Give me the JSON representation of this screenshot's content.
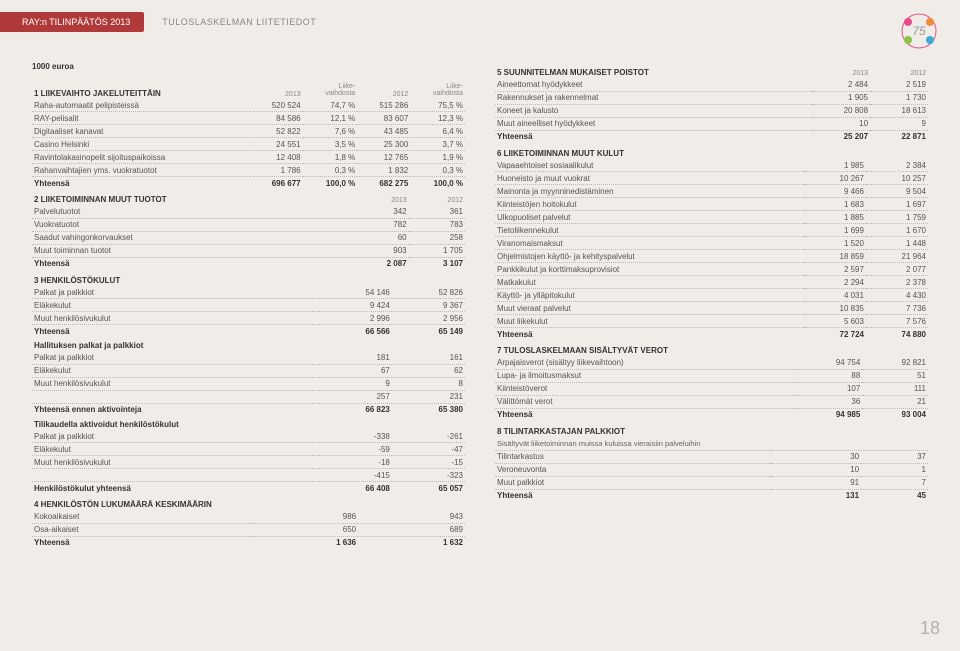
{
  "header": {
    "tab": "RAY:n TILINPÄÄTÖS 2013",
    "title": "TULOSLASKELMAN LIITETIEDOT"
  },
  "unit_label": "1000 euroa",
  "page_number": "18",
  "logo": {
    "colors": [
      "#e84c8a",
      "#f08c3c",
      "#3fa8d8",
      "#8bc34a"
    ]
  },
  "s1": {
    "title": "1 LIIKEVAIHTO JAKELUTEITTÄIN",
    "head": [
      "2013",
      "Liike-\nvaihdosta",
      "2012",
      "Liike-\nvaihdosta"
    ],
    "rows": [
      [
        "Raha-automaatit pelipisteissä",
        "520 524",
        "74,7 %",
        "515 286",
        "75,5 %"
      ],
      [
        "RAY-pelisalit",
        "84 586",
        "12,1 %",
        "83 607",
        "12,3 %"
      ],
      [
        "Digitaaliset kanavat",
        "52 822",
        "7,6 %",
        "43 485",
        "6,4 %"
      ],
      [
        "Casino Helsinki",
        "24 551",
        "3,5 %",
        "25 300",
        "3,7 %"
      ],
      [
        "Ravintolakasinopelit sijoituspaikoissa",
        "12 408",
        "1,8 %",
        "12 765",
        "1,9 %"
      ],
      [
        "Rahanvaihtajien yms. vuokratuotot",
        "1 786",
        "0,3 %",
        "1 832",
        "0,3 %"
      ]
    ],
    "total": [
      "Yhteensä",
      "696 677",
      "100,0 %",
      "682 275",
      "100,0 %"
    ]
  },
  "s2": {
    "title": "2 LIIKETOIMINNAN MUUT TUOTOT",
    "head": [
      "2013",
      "2012"
    ],
    "rows": [
      [
        "Palvelutuotot",
        "342",
        "361"
      ],
      [
        "Vuokratuotot",
        "782",
        "783"
      ],
      [
        "Saadut vahingonkorvaukset",
        "60",
        "258"
      ],
      [
        "Muut toiminnan tuotot",
        "903",
        "1 705"
      ]
    ],
    "total": [
      "Yhteensä",
      "2 087",
      "3 107"
    ]
  },
  "s3": {
    "title": "3 HENKILÖSTÖKULUT",
    "rows": [
      [
        "Palkat ja palkkiot",
        "54 146",
        "52 826"
      ],
      [
        "Eläkekulut",
        "9 424",
        "9 367"
      ],
      [
        "Muut henkilösivukulut",
        "2 996",
        "2 956"
      ]
    ],
    "total": [
      "Yhteensä",
      "66 566",
      "65 149"
    ]
  },
  "s3b": {
    "subtitle": "Hallituksen palkat ja palkkiot",
    "rows": [
      [
        "Palkat ja palkkiot",
        "181",
        "161"
      ],
      [
        "Eläkekulut",
        "67",
        "62"
      ],
      [
        "Muut henkilösivukulut",
        "9",
        "8"
      ],
      [
        "",
        "257",
        "231"
      ]
    ],
    "total": [
      "Yhteensä ennen aktivointeja",
      "66 823",
      "65 380"
    ]
  },
  "s3c": {
    "subtitle": "Tilikaudella aktivoidut henkilöstökulut",
    "rows": [
      [
        "Palkat ja palkkiot",
        "-338",
        "-261"
      ],
      [
        "Eläkekulut",
        "-59",
        "-47"
      ],
      [
        "Muut henkilösivukulut",
        "-18",
        "-15"
      ],
      [
        "",
        "-415",
        "-323"
      ]
    ],
    "total": [
      "Henkilöstökulut yhteensä",
      "66 408",
      "65 057"
    ]
  },
  "s4": {
    "title": "4 HENKILÖSTÖN LUKUMÄÄRÄ KESKIMÄÄRIN",
    "rows": [
      [
        "Kokoaikaiset",
        "986",
        "943"
      ],
      [
        "Osa-aikaiset",
        "650",
        "689"
      ]
    ],
    "total": [
      "Yhteensä",
      "1 636",
      "1 632"
    ]
  },
  "s5": {
    "title": "5 SUUNNITELMAN MUKAISET POISTOT",
    "head": [
      "2013",
      "2012"
    ],
    "rows": [
      [
        "Aineettomat hyödykkeet",
        "2 484",
        "2 519"
      ],
      [
        "Rakennukset ja rakennelmat",
        "1 905",
        "1 730"
      ],
      [
        "Koneet ja kalusto",
        "20 808",
        "18 613"
      ],
      [
        "Muut aineelliset hyödykkeet",
        "10",
        "9"
      ]
    ],
    "total": [
      "Yhteensä",
      "25 207",
      "22 871"
    ]
  },
  "s6": {
    "title": "6 LIIKETOIMINNAN MUUT KULUT",
    "rows": [
      [
        "Vapaaehtoiset sosiaalikulut",
        "1 985",
        "2 384"
      ],
      [
        "Huoneisto ja muut vuokrat",
        "10 267",
        "10 257"
      ],
      [
        "Mainonta ja myynninedistäminen",
        "9 466",
        "9 504"
      ],
      [
        "Kiinteistöjen hoitokulut",
        "1 683",
        "1 697"
      ],
      [
        "Ulkopuoliset palvelut",
        "1 885",
        "1 759"
      ],
      [
        "Tietoliikennekulut",
        "1 699",
        "1 670"
      ],
      [
        "Viranomaismaksut",
        "1 520",
        "1 448"
      ],
      [
        "Ohjelmistojen käyttö- ja kehityspalvelut",
        "18 859",
        "21 964"
      ],
      [
        "Pankkikulut ja korttimaksuprovisiot",
        "2 597",
        "2 077"
      ],
      [
        "Matkakulut",
        "2 294",
        "2 378"
      ],
      [
        "Käyttö- ja ylläpitokulut",
        "4 031",
        "4 430"
      ],
      [
        "Muut vieraat palvelut",
        "10 835",
        "7 736"
      ],
      [
        "Muut liikekulut",
        "5 603",
        "7 576"
      ]
    ],
    "total": [
      "Yhteensä",
      "72 724",
      "74 880"
    ]
  },
  "s7": {
    "title": "7 TULOSLASKELMAAN SISÄLTYVÄT VEROT",
    "rows": [
      [
        "Arpajaisverot (sisältyy liikevaihtoon)",
        "94 754",
        "92 821"
      ],
      [
        "Lupa- ja ilmoitusmaksut",
        "88",
        "51"
      ],
      [
        "Kiinteistöverot",
        "107",
        "111"
      ],
      [
        "Välittömät verot",
        "36",
        "21"
      ]
    ],
    "total": [
      "Yhteensä",
      "94 985",
      "93 004"
    ]
  },
  "s8": {
    "title": "8 TILINTARKASTAJAN PALKKIOT",
    "note": "Sisältyvät liiketoiminnan muissa kuluissa vieraisiin palveluihin",
    "rows": [
      [
        "Tilintarkastus",
        "30",
        "37"
      ],
      [
        "Veroneuvonta",
        "10",
        "1"
      ],
      [
        "Muut palkkiot",
        "91",
        "7"
      ]
    ],
    "total": [
      "Yhteensä",
      "131",
      "45"
    ]
  }
}
